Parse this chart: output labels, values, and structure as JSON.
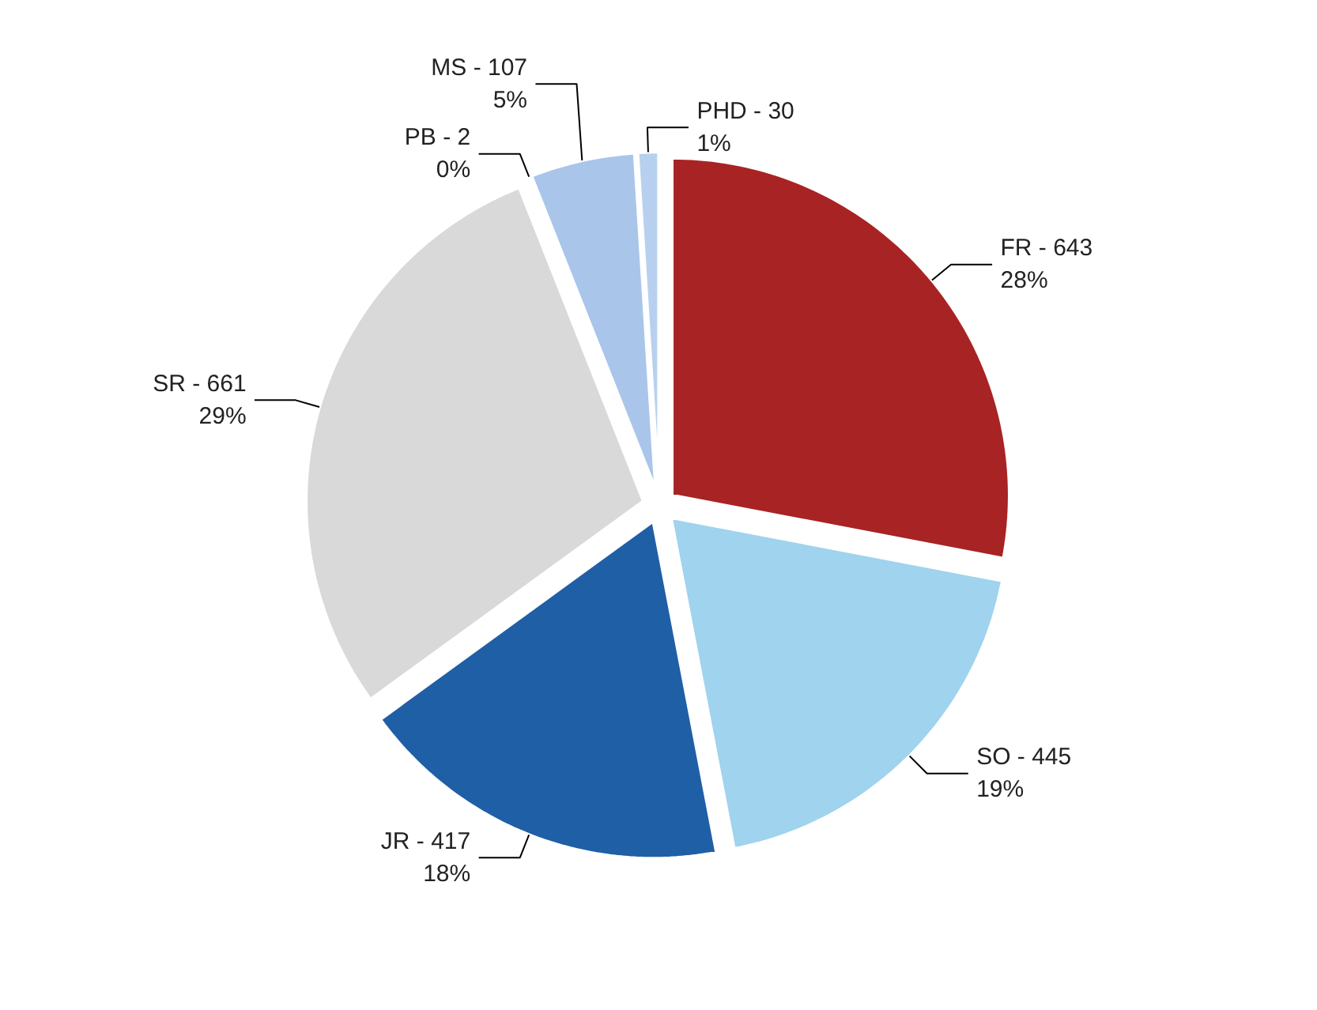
{
  "chart_data": {
    "type": "pie",
    "categories": [
      "FR - 643",
      "SO - 445",
      "JR - 417",
      "SR - 661",
      "PB - 2",
      "MS - 107",
      "PHD - 30"
    ],
    "values": [
      28,
      19,
      18,
      29,
      0,
      5,
      1
    ],
    "colors": [
      "#a82323",
      "#9fd3ee",
      "#1f5fa6",
      "#d9d9d9",
      "#8c8c8c",
      "#a9c5ea",
      "#b8d0ef"
    ],
    "value_labels": [
      "28%",
      "19%",
      "18%",
      "29%",
      "0%",
      "5%",
      "1%"
    ]
  }
}
